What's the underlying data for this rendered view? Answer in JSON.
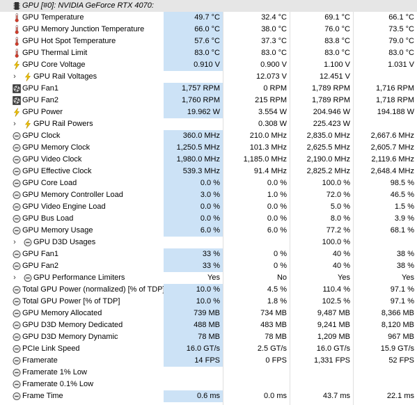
{
  "header": {
    "label": "GPU [#0]: NVIDIA GeForce RTX 4070:",
    "icon": "gpu-chip-icon"
  },
  "colors": {
    "value_highlight": "#cce2f6",
    "selection": "#cce8ff",
    "header_bg": "#e6e6e6"
  },
  "rows": [
    {
      "label": "GPU Temperature",
      "icon": "thermometer-icon",
      "values": [
        "49.7 °C",
        "32.4 °C",
        "69.1 °C",
        "66.1 °C"
      ]
    },
    {
      "label": "GPU Memory Junction Temperature",
      "icon": "thermometer-icon",
      "values": [
        "66.0 °C",
        "38.0 °C",
        "76.0 °C",
        "73.5 °C"
      ]
    },
    {
      "label": "GPU Hot Spot Temperature",
      "icon": "thermometer-icon",
      "values": [
        "57.6 °C",
        "37.3 °C",
        "83.8 °C",
        "79.0 °C"
      ]
    },
    {
      "label": "GPU Thermal Limit",
      "icon": "thermometer-icon",
      "values": [
        "83.0 °C",
        "83.0 °C",
        "83.0 °C",
        "83.0 °C"
      ]
    },
    {
      "label": "GPU Core Voltage",
      "icon": "lightning-icon",
      "values": [
        "0.910 V",
        "0.900 V",
        "1.100 V",
        "1.031 V"
      ]
    },
    {
      "label": "GPU Rail Voltages",
      "icon": "lightning-icon",
      "group": true,
      "values": [
        "",
        "12.073 V",
        "12.451 V",
        ""
      ]
    },
    {
      "label": "GPU Fan1",
      "icon": "fan-icon",
      "values": [
        "1,757 RPM",
        "0 RPM",
        "1,789 RPM",
        "1,716 RPM"
      ]
    },
    {
      "label": "GPU Fan2",
      "icon": "fan-icon",
      "values": [
        "1,760 RPM",
        "215 RPM",
        "1,789 RPM",
        "1,718 RPM"
      ]
    },
    {
      "label": "GPU Power",
      "icon": "lightning-icon",
      "values": [
        "19.962 W",
        "3.554 W",
        "204.946 W",
        "194.188 W"
      ]
    },
    {
      "label": "GPU Rail Powers",
      "icon": "lightning-icon",
      "group": true,
      "values": [
        "",
        "0.308 W",
        "225.423 W",
        ""
      ]
    },
    {
      "label": "GPU Clock",
      "icon": "gauge-icon",
      "values": [
        "360.0 MHz",
        "210.0 MHz",
        "2,835.0 MHz",
        "2,667.6 MHz"
      ]
    },
    {
      "label": "GPU Memory Clock",
      "icon": "gauge-icon",
      "values": [
        "1,250.5 MHz",
        "101.3 MHz",
        "2,625.5 MHz",
        "2,605.7 MHz"
      ]
    },
    {
      "label": "GPU Video Clock",
      "icon": "gauge-icon",
      "values": [
        "1,980.0 MHz",
        "1,185.0 MHz",
        "2,190.0 MHz",
        "2,119.6 MHz"
      ]
    },
    {
      "label": "GPU Effective Clock",
      "icon": "gauge-icon",
      "values": [
        "539.3 MHz",
        "91.4 MHz",
        "2,825.2 MHz",
        "2,648.4 MHz"
      ]
    },
    {
      "label": "GPU Core Load",
      "icon": "gauge-icon",
      "values": [
        "0.0 %",
        "0.0 %",
        "100.0 %",
        "98.5 %"
      ]
    },
    {
      "label": "GPU Memory Controller Load",
      "icon": "gauge-icon",
      "values": [
        "3.0 %",
        "1.0 %",
        "72.0 %",
        "46.5 %"
      ]
    },
    {
      "label": "GPU Video Engine Load",
      "icon": "gauge-icon",
      "values": [
        "0.0 %",
        "0.0 %",
        "5.0 %",
        "1.5 %"
      ]
    },
    {
      "label": "GPU Bus Load",
      "icon": "gauge-icon",
      "values": [
        "0.0 %",
        "0.0 %",
        "8.0 %",
        "3.9 %"
      ]
    },
    {
      "label": "GPU Memory Usage",
      "icon": "gauge-icon",
      "values": [
        "6.0 %",
        "6.0 %",
        "77.2 %",
        "68.1 %"
      ]
    },
    {
      "label": "GPU D3D Usages",
      "icon": "gauge-icon",
      "group": true,
      "values": [
        "",
        "",
        "100.0 %",
        ""
      ]
    },
    {
      "label": "GPU Fan1",
      "icon": "gauge-icon",
      "values": [
        "33 %",
        "0 %",
        "40 %",
        "38 %"
      ]
    },
    {
      "label": "GPU Fan2",
      "icon": "gauge-icon",
      "values": [
        "33 %",
        "0 %",
        "40 %",
        "38 %"
      ]
    },
    {
      "label": "GPU Performance Limiters",
      "icon": "gauge-icon",
      "group": true,
      "values": [
        "Yes",
        "No",
        "Yes",
        "Yes"
      ]
    },
    {
      "label": "Total GPU Power (normalized) [% of TDP]",
      "icon": "gauge-icon",
      "values": [
        "10.0 %",
        "4.5 %",
        "110.4 %",
        "97.1 %"
      ]
    },
    {
      "label": "Total GPU Power [% of TDP]",
      "icon": "gauge-icon",
      "values": [
        "10.0 %",
        "1.8 %",
        "102.5 %",
        "97.1 %"
      ]
    },
    {
      "label": "GPU Memory Allocated",
      "icon": "gauge-icon",
      "values": [
        "739 MB",
        "734 MB",
        "9,487 MB",
        "8,366 MB"
      ]
    },
    {
      "label": "GPU D3D Memory Dedicated",
      "icon": "gauge-icon",
      "values": [
        "488 MB",
        "483 MB",
        "9,241 MB",
        "8,120 MB"
      ]
    },
    {
      "label": "GPU D3D Memory Dynamic",
      "icon": "gauge-icon",
      "values": [
        "78 MB",
        "78 MB",
        "1,209 MB",
        "967 MB"
      ]
    },
    {
      "label": "PCIe Link Speed",
      "icon": "gauge-icon",
      "values": [
        "16.0 GT/s",
        "2.5 GT/s",
        "16.0 GT/s",
        "15.9 GT/s"
      ]
    },
    {
      "label": "Framerate",
      "icon": "gauge-icon",
      "values": [
        "14 FPS",
        "0 FPS",
        "1,331 FPS",
        "52 FPS"
      ]
    },
    {
      "label": "Framerate 1% Low",
      "icon": "gauge-icon",
      "values": [
        "",
        "",
        "",
        ""
      ]
    },
    {
      "label": "Framerate 0.1% Low",
      "icon": "gauge-icon",
      "values": [
        "",
        "",
        "",
        ""
      ]
    },
    {
      "label": "Frame Time",
      "icon": "gauge-icon",
      "values": [
        "0.6 ms",
        "0.0 ms",
        "43.7 ms",
        "22.1 ms"
      ]
    }
  ]
}
